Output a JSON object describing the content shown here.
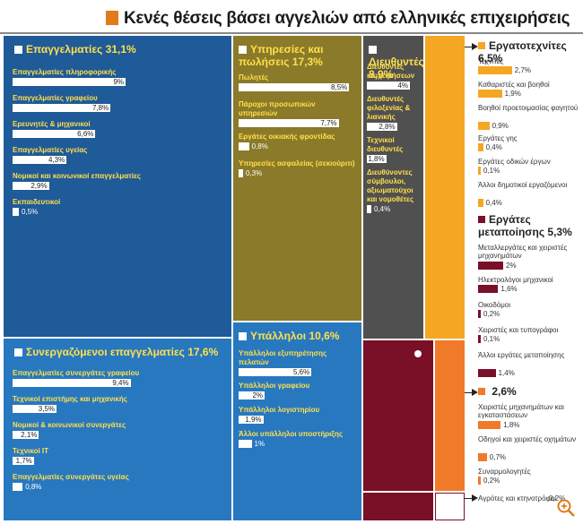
{
  "title": "Κενές θέσεις βάσει αγγελιών από ελληνικές επιχειρήσεις",
  "colors": {
    "blue_dark": "#1f5a99",
    "blue_mid": "#2878c0",
    "olive_dark": "#8a7a2a",
    "olive_mid": "#a89535",
    "grey": "#505050",
    "orange_light": "#f5a623",
    "maroon": "#7a0f28",
    "orange_dark": "#f07a2a",
    "header_text": "#ffe04a"
  },
  "chart_data": {
    "type": "treemap",
    "title": "Κενές θέσεις βάσει αγγελιών από ελληνικές επιχειρήσεις",
    "groups": [
      {
        "id": "professionals",
        "name": "Επαγγελματίες",
        "value": "31,1%",
        "items": [
          {
            "label": "Επαγγελματίες πληροφορικής",
            "value": "9%",
            "n": 9
          },
          {
            "label": "Επαγγελματίες γραφείου",
            "value": "7,8%",
            "n": 7.8
          },
          {
            "label": "Ερευνητές & μηχανικοί",
            "value": "6,6%",
            "n": 6.6
          },
          {
            "label": "Επαγγελματίες υγείας",
            "value": "4,3%",
            "n": 4.3
          },
          {
            "label": "Νομικοί και κοινωνικοί επαγγελματίες",
            "value": "2,9%",
            "n": 2.9
          },
          {
            "label": "Εκπαιδευτικοί",
            "value": "0,5%",
            "n": 0.5
          }
        ]
      },
      {
        "id": "services",
        "name": "Υπηρεσίες και πωλήσεις",
        "value": "17,3%",
        "items": [
          {
            "label": "Πωλητές",
            "value": "8,5%",
            "n": 8.5
          },
          {
            "label": "Πάροχοι προσωπικών υπηρεσιών",
            "value": "7,7%",
            "n": 7.7
          },
          {
            "label": "Εργάτες οικιακής φροντίδας",
            "value": "0,8%",
            "n": 0.8
          },
          {
            "label": "Υπηρεσίες ασφαλείας (σεκιούριτι)",
            "value": "0,3%",
            "n": 0.3
          }
        ]
      },
      {
        "id": "managers",
        "name": "Διευθυντές",
        "value": "8,9%",
        "items": [
          {
            "label": "Διευθυντές επιχειρήσεων",
            "value": "4%",
            "n": 4
          },
          {
            "label": "Διευθυντές φιλοξενίας & λιανικής",
            "value": "2,8%",
            "n": 2.8
          },
          {
            "label": "Τεχνικοί διευθυντές",
            "value": "1,8%",
            "n": 1.8
          },
          {
            "label": "Διευθύνοντες σύμβουλοι, αξιωματούχοι και νομοθέτες",
            "value": "0,4%",
            "n": 0.4
          }
        ]
      },
      {
        "id": "associates",
        "name": "Συνεργαζόμενοι επαγγελματίες",
        "value": "17,6%",
        "items": [
          {
            "label": "Επαγγελματίες συνεργάτες γραφείου",
            "value": "9,4%",
            "n": 9.4
          },
          {
            "label": "Τεχνικοί επιστήμης και μηχανικής",
            "value": "3,5%",
            "n": 3.5
          },
          {
            "label": "Νομικοί & κοινωνικοί συνεργάτες",
            "value": "2,1%",
            "n": 2.1
          },
          {
            "label": "Τεχνικοί IT",
            "value": "1,7%",
            "n": 1.7
          },
          {
            "label": "Επαγγελματίες συνεργάτες υγείας",
            "value": "0,8%",
            "n": 0.8
          }
        ]
      },
      {
        "id": "clerks",
        "name": "Υπάλληλοι",
        "value": "10,6%",
        "items": [
          {
            "label": "Υπάλληλοι εξυπηρέτησης πελατών",
            "value": "5,6%",
            "n": 5.6
          },
          {
            "label": "Υπάλληλοι γραφείου",
            "value": "2%",
            "n": 2
          },
          {
            "label": "Υπάλληλοι λογιστηρίου",
            "value": "1,9%",
            "n": 1.9
          },
          {
            "label": "Άλλοι υπάλληλοι υποστήριξης",
            "value": "1%",
            "n": 1
          }
        ]
      },
      {
        "id": "craft",
        "name": "Εργατοτεχνίτες",
        "value": "6,5%",
        "items": [
          {
            "label": "Τεχνίτες",
            "value": "2,7%",
            "n": 2.7
          },
          {
            "label": "Καθαριστές και βοηθοί",
            "value": "1,9%",
            "n": 1.9
          },
          {
            "label": "Βοηθοί προετοιμασίας φαγητού",
            "value": "0,9%",
            "n": 0.9
          },
          {
            "label": "Εργάτες γης",
            "value": "0,4%",
            "n": 0.4
          },
          {
            "label": "Εργάτες οδικών έργων",
            "value": "0,1%",
            "n": 0.1
          },
          {
            "label": "Άλλοι δημοτικοί εργαζόμενοι",
            "value": "0,4%",
            "n": 0.4
          }
        ]
      },
      {
        "id": "processing",
        "name": "Εργάτες μεταποίησης",
        "value": "5,3%",
        "items": [
          {
            "label": "Μεταλλεργάτες και χειριστές μηχανημάτων",
            "value": "2%",
            "n": 2
          },
          {
            "label": "Ηλεκτρολόγοι μηχανικοί",
            "value": "1,6%",
            "n": 1.6
          },
          {
            "label": "Οικοδόμοι",
            "value": "0,2%",
            "n": 0.2
          },
          {
            "label": "Χειριστές και τυπογράφοι",
            "value": "0,1%",
            "n": 0.1
          },
          {
            "label": "Άλλοι εργάτες μεταποίησης",
            "value": "1,4%",
            "n": 1.4
          }
        ]
      },
      {
        "id": "operators",
        "name": "",
        "value": "2,6%",
        "items": [
          {
            "label": "Χειριστές μηχανημάτων και εγκαταστάσεων",
            "value": "1,8%",
            "n": 1.8
          },
          {
            "label": "Οδηγοί και χειριστές οχημάτων",
            "value": "0,7%",
            "n": 0.7
          },
          {
            "label": "Συναρμολογητές",
            "value": "0,2%",
            "n": 0.2
          }
        ]
      },
      {
        "id": "agri",
        "name": "",
        "value": "",
        "items": [
          {
            "label": "Αγρότες και κτηνοτρόφοι",
            "value": "0,2%",
            "n": 0.2
          }
        ]
      }
    ]
  }
}
